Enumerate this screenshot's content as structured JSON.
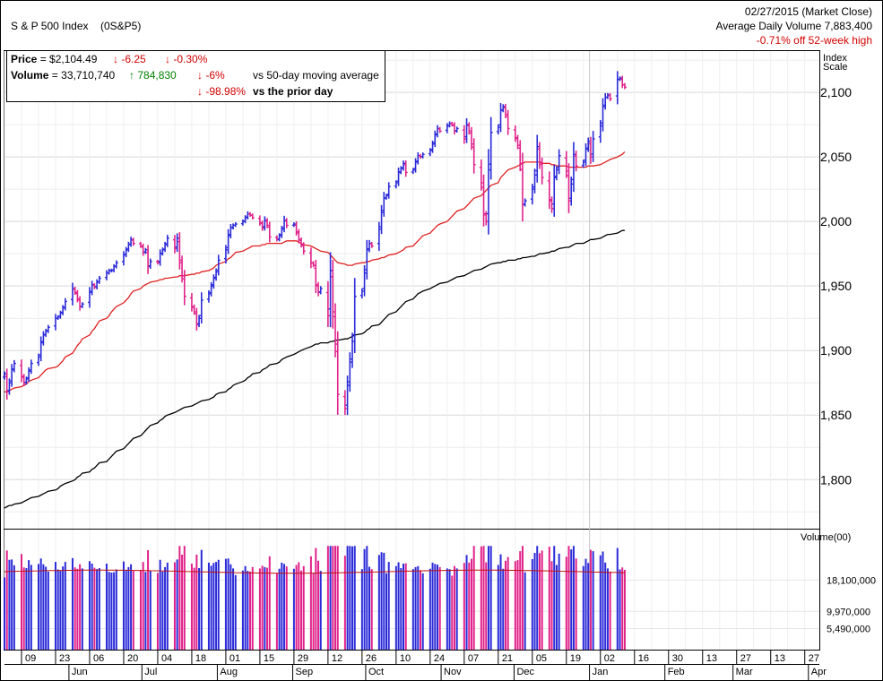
{
  "header": {
    "title": "S & P 500 Index",
    "symbol": "(0S&P5)",
    "date_line": "02/27/2015 (Market Close)",
    "avg_volume_line": "Average Daily Volume 7,883,400",
    "off_high_line": "-0.71% off 52-week high"
  },
  "infobox": {
    "price_label": "Price",
    "price_value": "$2,104.49",
    "price_change": "-6.25",
    "price_change_pct": "-0.30%",
    "volume_label": "Volume",
    "volume_value": "33,710,740",
    "volume_change": "784,830",
    "volume_vs_ma_pct": "-6%",
    "volume_vs_ma_text": "vs 50-day moving average",
    "volume_vs_prior_pct": "-98.98%",
    "volume_vs_prior_text": "vs the prior day"
  },
  "colors": {
    "up": "#2b2bd9",
    "down": "#e0228a",
    "ma50": "#e02020",
    "ma200": "#000000",
    "grid": "#d8d8d8",
    "volume_ma": "#c01010"
  },
  "chart_data": {
    "type": "ohlc",
    "price_axis_title": "Index Scale",
    "y_ticks": [
      1800,
      1850,
      1900,
      1950,
      2000,
      2050,
      2100
    ],
    "ylim": [
      1762,
      2132
    ],
    "volume_axis_title": "Volume(00)",
    "volume_ticks": [
      "18,100,000",
      "9,970,000",
      "5,490,000"
    ],
    "volume_tick_values": [
      18100000,
      9970000,
      5490000
    ],
    "x_day_labels": [
      "09",
      "23",
      "06",
      "20",
      "04",
      "18",
      "01",
      "15",
      "29",
      "12",
      "26",
      "10",
      "24",
      "07",
      "21",
      "05",
      "19",
      "02",
      "16",
      "30",
      "13",
      "27",
      "13",
      "27"
    ],
    "x_month_labels": [
      "Jun",
      "Jul",
      "Aug",
      "Sep",
      "Oct",
      "Nov",
      "Dec",
      "Jan",
      "Feb",
      "Mar",
      "Apr"
    ],
    "x_range": [
      "2014-05-05",
      "2015-04-05"
    ],
    "closes": [
      1882,
      1868,
      1875,
      1885,
      1890,
      1880,
      1875,
      1878,
      1884,
      1890,
      1895,
      1906,
      1912,
      1915,
      1918,
      1925,
      1926,
      1929,
      1933,
      1938,
      1948,
      1945,
      1940,
      1934,
      1936,
      1945,
      1951,
      1949,
      1953,
      1956,
      1960,
      1962,
      1962,
      1965,
      1968,
      1974,
      1978,
      1982,
      1986,
      1983,
      1981,
      1976,
      1978,
      1965,
      1969,
      1968,
      1975,
      1978,
      1982,
      1987,
      1979,
      1987,
      1970,
      1958,
      1942,
      1934,
      1930,
      1920,
      1925,
      1939,
      1944,
      1950,
      1956,
      1961,
      1970,
      1978,
      1989,
      1995,
      1997,
      1998,
      2000,
      2003,
      2006,
      2005,
      2003,
      1999,
      1995,
      2001,
      1997,
      1988,
      1986,
      1989,
      1994,
      2001,
      1997,
      1998,
      1992,
      1986,
      1982,
      1977,
      1968,
      1966,
      1951,
      1945,
      1948,
      1927,
      1962,
      1930,
      1905,
      1866,
      1855,
      1873,
      1891,
      1907,
      1942,
      1946,
      1960,
      1978,
      1983,
      1981,
      1994,
      2007,
      2018,
      2020,
      2027,
      2030,
      2038,
      2041,
      2045,
      2038,
      2040,
      2046,
      2051,
      2050,
      2052,
      2055,
      2060,
      2067,
      2072,
      2070,
      2074,
      2076,
      2075,
      2070,
      2072,
      2064,
      2075,
      2070,
      2060,
      2044,
      2030,
      2006,
      2000,
      2040,
      2069,
      2073,
      2086,
      2089,
      2083,
      2072,
      2065,
      2059,
      2045,
      2013,
      2016,
      2025,
      2036,
      2058,
      2046,
      2034,
      2017,
      2010,
      2034,
      2040,
      2051,
      2039,
      2016,
      2029,
      2052,
      2043,
      2046,
      2056,
      2062,
      2050,
      2064,
      2074,
      2089,
      2096,
      2098,
      2095,
      2110,
      2111,
      2106,
      2104
    ],
    "ma50": [
      1868,
      1868,
      1869,
      1870,
      1871,
      1872,
      1873,
      1874,
      1876,
      1877,
      1879,
      1881,
      1883,
      1885,
      1886,
      1887,
      1888,
      1890,
      1892,
      1895,
      1898,
      1901,
      1904,
      1906,
      1909,
      1912,
      1915,
      1917,
      1920,
      1923,
      1925,
      1927,
      1930,
      1932,
      1934,
      1937,
      1939,
      1941,
      1944,
      1946,
      1948,
      1950,
      1951,
      1952,
      1953,
      1954,
      1955,
      1955,
      1956,
      1956,
      1957,
      1957,
      1958,
      1958,
      1958,
      1959,
      1959,
      1960,
      1960,
      1961,
      1962,
      1963,
      1964,
      1966,
      1967,
      1969,
      1971,
      1972,
      1974,
      1976,
      1977,
      1978,
      1979,
      1980,
      1981,
      1981,
      1982,
      1982,
      1983,
      1983,
      1983,
      1983,
      1983,
      1984,
      1985,
      1985,
      1985,
      1984,
      1983,
      1982,
      1981,
      1980,
      1979,
      1978,
      1977,
      1976,
      1974,
      1972,
      1970,
      1968,
      1967,
      1966,
      1966,
      1966,
      1967,
      1968,
      1968,
      1969,
      1969,
      1970,
      1971,
      1972,
      1972,
      1973,
      1974,
      1975,
      1976,
      1977,
      1978,
      1980,
      1981,
      1983,
      1985,
      1987,
      1989,
      1991,
      1993,
      1995,
      1997,
      1998,
      2000,
      2002,
      2004,
      2006,
      2008,
      2010,
      2012,
      2014,
      2016,
      2018,
      2020,
      2022,
      2024,
      2026,
      2028,
      2030,
      2034,
      2036,
      2038,
      2040,
      2042,
      2043,
      2044,
      2045,
      2046,
      2046,
      2046,
      2046,
      2046,
      2045,
      2045,
      2044,
      2044,
      2043,
      2043,
      2043,
      2042,
      2042,
      2042,
      2042,
      2042,
      2042,
      2043,
      2043,
      2043,
      2044,
      2045,
      2046,
      2047,
      2048,
      2050,
      2051,
      2052,
      2054
    ],
    "ma200": [
      1778,
      1779,
      1780,
      1780,
      1781,
      1782,
      1783,
      1784,
      1785,
      1786,
      1787,
      1788,
      1789,
      1790,
      1791,
      1792,
      1793,
      1795,
      1796,
      1797,
      1799,
      1800,
      1802,
      1803,
      1805,
      1806,
      1808,
      1809,
      1811,
      1813,
      1814,
      1816,
      1818,
      1820,
      1822,
      1824,
      1826,
      1828,
      1830,
      1832,
      1834,
      1836,
      1838,
      1840,
      1842,
      1844,
      1846,
      1847,
      1849,
      1850,
      1852,
      1853,
      1854,
      1855,
      1856,
      1857,
      1858,
      1859,
      1860,
      1861,
      1862,
      1863,
      1864,
      1866,
      1867,
      1868,
      1870,
      1871,
      1873,
      1874,
      1876,
      1877,
      1879,
      1880,
      1882,
      1883,
      1885,
      1886,
      1887,
      1889,
      1890,
      1891,
      1893,
      1894,
      1895,
      1897,
      1898,
      1899,
      1900,
      1901,
      1903,
      1904,
      1905,
      1905,
      1906,
      1906,
      1907,
      1907,
      1908,
      1908,
      1909,
      1909,
      1910,
      1911,
      1912,
      1913,
      1914,
      1916,
      1917,
      1919,
      1920,
      1922,
      1924,
      1926,
      1928,
      1930,
      1932,
      1934,
      1936,
      1938,
      1940,
      1942,
      1944,
      1945,
      1946,
      1948,
      1949,
      1950,
      1951,
      1952,
      1953,
      1954,
      1955,
      1956,
      1957,
      1958,
      1959,
      1960,
      1961,
      1962,
      1963,
      1964,
      1965,
      1966,
      1967,
      1968,
      1968,
      1969,
      1969,
      1970,
      1970,
      1971,
      1971,
      1972,
      1972,
      1973,
      1973,
      1974,
      1975,
      1975,
      1976,
      1977,
      1977,
      1978,
      1979,
      1980,
      1980,
      1981,
      1982,
      1983,
      1983,
      1984,
      1985,
      1986,
      1986,
      1987,
      1988,
      1989,
      1990,
      1990,
      1991,
      1992,
      1993,
      1993
    ]
  }
}
